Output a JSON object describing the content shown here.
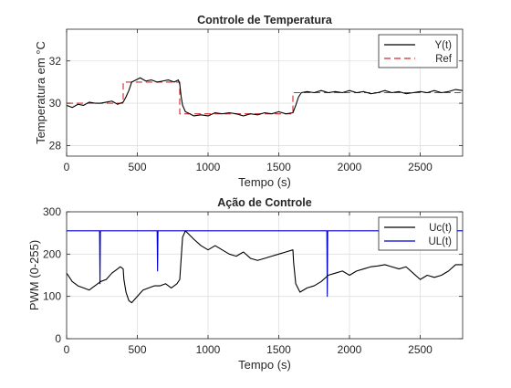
{
  "chart_data": [
    {
      "type": "line",
      "title": "Controle de Temperatura",
      "xlabel": "Tempo (s)",
      "ylabel": "Temperatura em °C",
      "xlim": [
        0,
        2800
      ],
      "ylim": [
        27.5,
        33.5
      ],
      "xticks": [
        0,
        500,
        1000,
        1500,
        2000,
        2500
      ],
      "yticks": [
        28,
        30,
        32
      ],
      "grid": true,
      "legend_position": "top-right",
      "series": [
        {
          "name": "Y(t)",
          "color": "#000000",
          "style": "solid",
          "points": [
            [
              0,
              29.9
            ],
            [
              40,
              29.8
            ],
            [
              80,
              29.95
            ],
            [
              120,
              29.9
            ],
            [
              160,
              30.05
            ],
            [
              200,
              30.0
            ],
            [
              240,
              30.0
            ],
            [
              280,
              30.05
            ],
            [
              320,
              30.1
            ],
            [
              360,
              29.95
            ],
            [
              400,
              30.05
            ],
            [
              420,
              30.3
            ],
            [
              440,
              30.6
            ],
            [
              460,
              31.0
            ],
            [
              490,
              31.1
            ],
            [
              520,
              31.2
            ],
            [
              560,
              31.05
            ],
            [
              600,
              31.1
            ],
            [
              640,
              31.0
            ],
            [
              680,
              31.05
            ],
            [
              720,
              31.1
            ],
            [
              760,
              31.0
            ],
            [
              790,
              31.1
            ],
            [
              800,
              30.9
            ],
            [
              810,
              30.3
            ],
            [
              820,
              29.9
            ],
            [
              840,
              29.6
            ],
            [
              870,
              29.5
            ],
            [
              900,
              29.4
            ],
            [
              950,
              29.45
            ],
            [
              1000,
              29.4
            ],
            [
              1050,
              29.55
            ],
            [
              1100,
              29.5
            ],
            [
              1150,
              29.55
            ],
            [
              1200,
              29.5
            ],
            [
              1250,
              29.4
            ],
            [
              1300,
              29.5
            ],
            [
              1350,
              29.45
            ],
            [
              1400,
              29.55
            ],
            [
              1450,
              29.5
            ],
            [
              1500,
              29.6
            ],
            [
              1550,
              29.5
            ],
            [
              1600,
              29.55
            ],
            [
              1620,
              29.9
            ],
            [
              1640,
              30.3
            ],
            [
              1660,
              30.5
            ],
            [
              1700,
              30.55
            ],
            [
              1750,
              30.5
            ],
            [
              1800,
              30.6
            ],
            [
              1850,
              30.5
            ],
            [
              1900,
              30.55
            ],
            [
              1950,
              30.5
            ],
            [
              2000,
              30.6
            ],
            [
              2050,
              30.5
            ],
            [
              2100,
              30.55
            ],
            [
              2150,
              30.45
            ],
            [
              2200,
              30.5
            ],
            [
              2250,
              30.6
            ],
            [
              2300,
              30.5
            ],
            [
              2350,
              30.55
            ],
            [
              2400,
              30.45
            ],
            [
              2450,
              30.5
            ],
            [
              2500,
              30.55
            ],
            [
              2550,
              30.5
            ],
            [
              2600,
              30.6
            ],
            [
              2650,
              30.5
            ],
            [
              2700,
              30.55
            ],
            [
              2750,
              30.65
            ],
            [
              2800,
              30.6
            ]
          ]
        },
        {
          "name": "Ref",
          "color": "#d62728",
          "style": "dashed",
          "points": [
            [
              0,
              30
            ],
            [
              400,
              30
            ],
            [
              400,
              31
            ],
            [
              800,
              31
            ],
            [
              800,
              29.5
            ],
            [
              1600,
              29.5
            ],
            [
              1600,
              30.5
            ],
            [
              2800,
              30.5
            ]
          ]
        }
      ]
    },
    {
      "type": "line",
      "title": "Ação de Controle",
      "xlabel": "Tempo (s)",
      "ylabel": "PWM (0-255)",
      "xlim": [
        0,
        2800
      ],
      "ylim": [
        0,
        300
      ],
      "xticks": [
        0,
        500,
        1000,
        1500,
        2000,
        2500
      ],
      "yticks": [
        0,
        100,
        200,
        300
      ],
      "grid": true,
      "legend_position": "top-right",
      "series": [
        {
          "name": "Uc(t)",
          "color": "#000000",
          "style": "solid",
          "points": [
            [
              0,
              155
            ],
            [
              40,
              135
            ],
            [
              80,
              125
            ],
            [
              120,
              120
            ],
            [
              160,
              115
            ],
            [
              200,
              125
            ],
            [
              240,
              135
            ],
            [
              280,
              140
            ],
            [
              320,
              155
            ],
            [
              360,
              165
            ],
            [
              380,
              170
            ],
            [
              400,
              165
            ],
            [
              405,
              140
            ],
            [
              420,
              110
            ],
            [
              440,
              90
            ],
            [
              460,
              85
            ],
            [
              500,
              100
            ],
            [
              540,
              115
            ],
            [
              580,
              120
            ],
            [
              620,
              125
            ],
            [
              660,
              125
            ],
            [
              700,
              130
            ],
            [
              740,
              120
            ],
            [
              780,
              130
            ],
            [
              800,
              140
            ],
            [
              810,
              190
            ],
            [
              820,
              240
            ],
            [
              840,
              255
            ],
            [
              870,
              245
            ],
            [
              900,
              235
            ],
            [
              950,
              220
            ],
            [
              1000,
              210
            ],
            [
              1050,
              220
            ],
            [
              1100,
              210
            ],
            [
              1150,
              200
            ],
            [
              1200,
              195
            ],
            [
              1250,
              205
            ],
            [
              1300,
              190
            ],
            [
              1350,
              185
            ],
            [
              1400,
              190
            ],
            [
              1450,
              195
            ],
            [
              1500,
              200
            ],
            [
              1550,
              205
            ],
            [
              1600,
              210
            ],
            [
              1605,
              180
            ],
            [
              1620,
              130
            ],
            [
              1650,
              110
            ],
            [
              1700,
              120
            ],
            [
              1750,
              125
            ],
            [
              1800,
              135
            ],
            [
              1850,
              150
            ],
            [
              1900,
              155
            ],
            [
              1950,
              160
            ],
            [
              2000,
              150
            ],
            [
              2050,
              160
            ],
            [
              2100,
              165
            ],
            [
              2150,
              170
            ],
            [
              2200,
              172
            ],
            [
              2250,
              175
            ],
            [
              2300,
              170
            ],
            [
              2350,
              165
            ],
            [
              2400,
              170
            ],
            [
              2450,
              155
            ],
            [
              2500,
              140
            ],
            [
              2550,
              150
            ],
            [
              2600,
              145
            ],
            [
              2650,
              150
            ],
            [
              2700,
              160
            ],
            [
              2750,
              175
            ],
            [
              2800,
              175
            ]
          ]
        },
        {
          "name": "UL(t)",
          "color": "#0000cc",
          "style": "solid",
          "points": [
            [
              0,
              255
            ],
            [
              233,
              255
            ],
            [
              236,
              130
            ],
            [
              239,
              255
            ],
            [
              640,
              255
            ],
            [
              643,
              160
            ],
            [
              646,
              255
            ],
            [
              1840,
              255
            ],
            [
              1843,
              100
            ],
            [
              1846,
              255
            ],
            [
              2800,
              255
            ]
          ]
        }
      ]
    }
  ]
}
